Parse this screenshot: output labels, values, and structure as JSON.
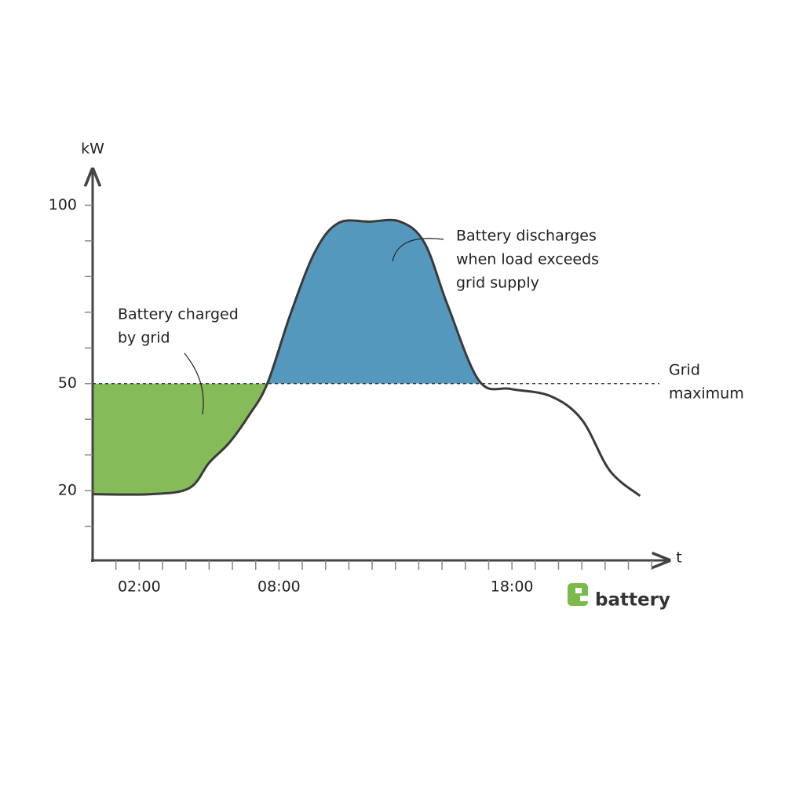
{
  "chart_data": {
    "type": "line",
    "x_label": "t",
    "y_label": "kW",
    "x": [
      0,
      2.5,
      4.15,
      5.0,
      5.85,
      6.7,
      7.5,
      8.5,
      9.55,
      10.55,
      11.9,
      13.2,
      14.25,
      15.25,
      16.6,
      17.95,
      19.65,
      21.0,
      22.2,
      23.5
    ],
    "series": [
      {
        "color": "#3a3a3a",
        "values": [
          19,
          19,
          20.7,
          27.8,
          33.3,
          41,
          50,
          69.6,
          87,
          95,
          95.4,
          95.4,
          89.4,
          71.8,
          50.7,
          48.5,
          46.5,
          39.9,
          25.6,
          18.5
        ]
      }
    ],
    "xlim": [
      0,
      24.6
    ],
    "xticks": [
      {
        "value": 2,
        "label": "02:00"
      },
      {
        "value": 8,
        "label": "08:00"
      },
      {
        "value": 18,
        "label": "18:00"
      }
    ],
    "xminor_ticks": [
      1,
      2,
      3,
      4,
      5,
      6,
      7,
      8,
      9,
      10,
      11,
      12,
      13,
      14,
      15,
      16,
      17,
      18,
      19,
      20,
      21,
      22,
      23,
      24
    ],
    "ylim": [
      0,
      110
    ],
    "yticks": [
      20,
      50,
      100
    ],
    "yminor_ticks": [
      10,
      20,
      30,
      40,
      50,
      60,
      70,
      80,
      90,
      100
    ],
    "grid_max": 50,
    "grid_max_label": [
      "Grid",
      "maximum"
    ],
    "fill_below_color": "#86bb5a",
    "fill_above_color": "#5499bd",
    "annotations": [
      {
        "lines": [
          "Battery charged",
          "by grid"
        ]
      },
      {
        "lines": [
          "Battery discharges",
          "when load exceeds",
          "grid supply"
        ]
      }
    ],
    "logo": "battery"
  }
}
